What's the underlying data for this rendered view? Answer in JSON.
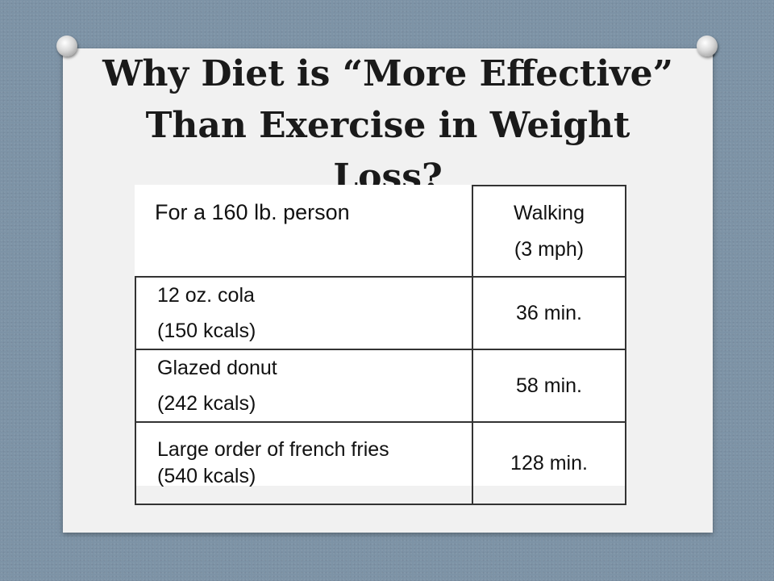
{
  "slide": {
    "title": "Why Diet is “More Effective”\nThan Exercise in Weight\nLoss?"
  },
  "table": {
    "corner_label": "For a 160 lb. person",
    "column_header": [
      "Walking",
      "(3 mph)"
    ],
    "rows": [
      {
        "food": [
          "12 oz. cola",
          "(150 kcals)"
        ],
        "walking_time": "36 min."
      },
      {
        "food": [
          "Glazed donut",
          "(242 kcals)"
        ],
        "walking_time": "58 min."
      },
      {
        "food": [
          "Large order of french fries",
          "(540 kcals)"
        ],
        "walking_time": "128 min."
      }
    ]
  }
}
